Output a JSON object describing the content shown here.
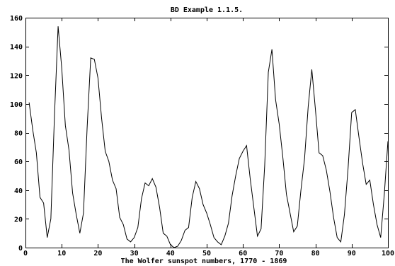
{
  "chart_data": {
    "type": "line",
    "title": "BD Example 1.1.5.",
    "xlabel": "The Wolfer sunspot numbers, 1770 - 1869",
    "ylabel": "",
    "xlim": [
      0,
      100
    ],
    "ylim": [
      0,
      160
    ],
    "xticks": [
      0,
      10,
      20,
      30,
      40,
      50,
      60,
      70,
      80,
      90,
      100
    ],
    "yticks": [
      0,
      20,
      40,
      60,
      80,
      100,
      120,
      140,
      160
    ],
    "grid": false,
    "series": [
      {
        "x": [
          1,
          2,
          3,
          4,
          5,
          6,
          7,
          8,
          9,
          10,
          11,
          12,
          13,
          14,
          15,
          16,
          17,
          18,
          19,
          20,
          21,
          22,
          23,
          24,
          25,
          26,
          27,
          28,
          29,
          30,
          31,
          32,
          33,
          34,
          35,
          36,
          37,
          38,
          39,
          40,
          41,
          42,
          43,
          44,
          45,
          46,
          47,
          48,
          49,
          50,
          51,
          52,
          53,
          54,
          55,
          56,
          57,
          58,
          59,
          60,
          61,
          62,
          63,
          64,
          65,
          66,
          67,
          68,
          69,
          70,
          71,
          72,
          73,
          74,
          75,
          76,
          77,
          78,
          79,
          80,
          81,
          82,
          83,
          84,
          85,
          86,
          87,
          88,
          89,
          90,
          91,
          92,
          93,
          94,
          95,
          96,
          97,
          98,
          99,
          100
        ],
        "values": [
          101,
          82,
          66,
          35,
          31,
          7,
          20,
          92,
          154,
          125,
          85,
          68,
          38,
          23,
          10,
          24,
          83,
          132,
          131,
          118,
          90,
          67,
          60,
          47,
          41,
          21,
          16,
          6,
          4,
          7,
          14,
          34,
          45,
          43,
          48,
          42,
          28,
          10,
          8,
          2,
          0,
          1,
          5,
          12,
          14,
          35,
          46,
          41,
          30,
          24,
          16,
          7,
          4,
          2,
          8,
          17,
          36,
          50,
          62,
          67,
          71,
          48,
          28,
          8,
          13,
          57,
          122,
          138,
          103,
          86,
          63,
          37,
          24,
          11,
          15,
          40,
          62,
          98,
          124,
          96,
          66,
          64,
          54,
          39,
          21,
          7,
          4,
          23,
          55,
          94,
          96,
          77,
          59,
          44,
          47,
          30,
          16,
          7,
          37,
          74
        ],
        "color": "#000000"
      }
    ]
  }
}
